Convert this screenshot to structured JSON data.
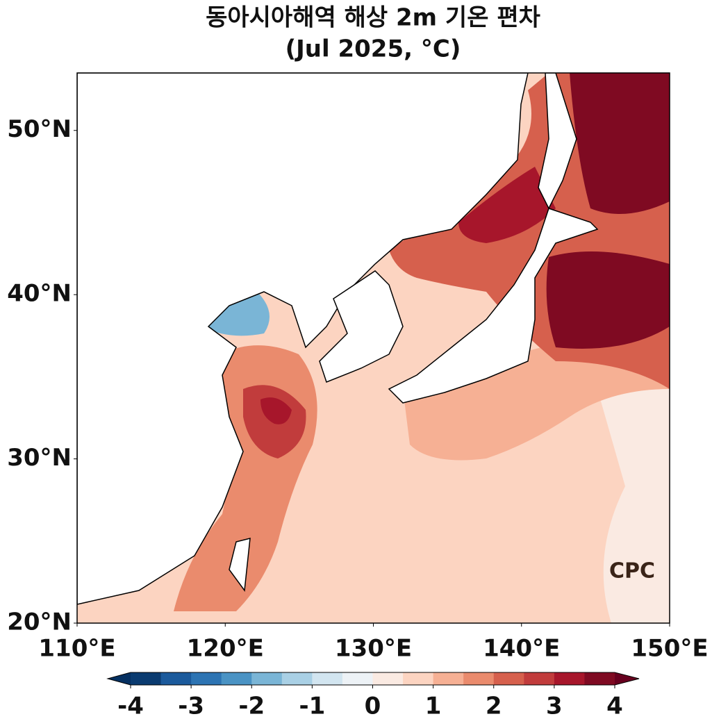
{
  "title": [
    "동아시아해역 해상 2m 기온 편차",
    "(Jul 2025, °C)"
  ],
  "map": {
    "xlim": [
      110,
      150
    ],
    "ylim": [
      20,
      53.5
    ],
    "xticks": [
      {
        "value": 110,
        "label": "110°E"
      },
      {
        "value": 120,
        "label": "120°E"
      },
      {
        "value": 130,
        "label": "130°E"
      },
      {
        "value": 140,
        "label": "140°E"
      },
      {
        "value": 150,
        "label": "150°E"
      }
    ],
    "yticks": [
      {
        "value": 20,
        "label": "20°N"
      },
      {
        "value": 30,
        "label": "30°N"
      },
      {
        "value": 40,
        "label": "40°N"
      },
      {
        "value": 50,
        "label": "50°N"
      }
    ]
  },
  "colorbar": {
    "lim": [
      -4,
      4
    ],
    "ticks": [
      -4,
      -3,
      -2,
      -1,
      0,
      1,
      2,
      3,
      4
    ],
    "colors": [
      "#0a3b70",
      "#1b5a9c",
      "#2d74b3",
      "#4a93c4",
      "#7ab5d6",
      "#a9d0e5",
      "#d2e5f0",
      "#edf2f6",
      "#faeae2",
      "#fcd4c1",
      "#f6b094",
      "#ea8b6d",
      "#d6604d",
      "#c13c3c",
      "#a7162b",
      "#7f0a22"
    ],
    "extend_colors": [
      "#053061",
      "#67001f"
    ]
  },
  "logo": "CPC"
}
